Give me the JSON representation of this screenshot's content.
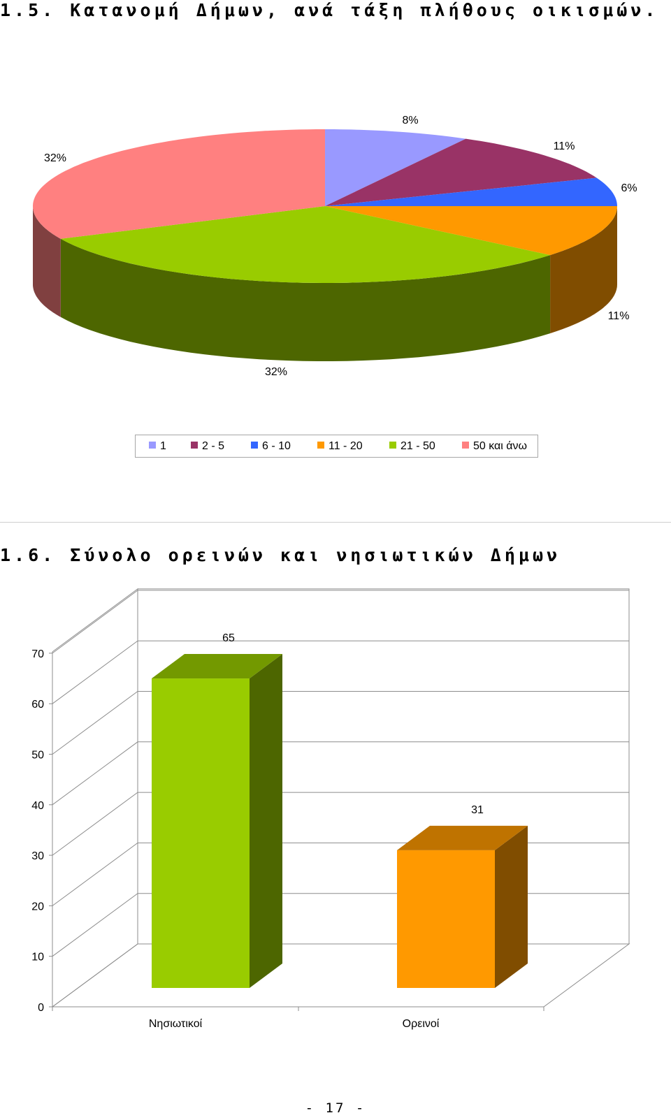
{
  "section1": {
    "title": "1.5.  Κατανομή Δήμων, ανά τάξη πλήθους οικισμών."
  },
  "section2": {
    "title": "1.6.  Σύνολο ορεινών και νησιωτικών Δήμων"
  },
  "footer": {
    "page": "- 17 -"
  },
  "chart_data": [
    {
      "type": "pie",
      "style": "3d",
      "title": "",
      "categories": [
        "1",
        "2 - 5",
        "6 - 10",
        "11 - 20",
        "21 - 50",
        "50 και άνω"
      ],
      "values": [
        8,
        11,
        6,
        11,
        32,
        32
      ],
      "labels": [
        "8%",
        "11%",
        "6%",
        "11%",
        "32%",
        "32%"
      ],
      "colors": [
        "#9999ff",
        "#993366",
        "#3366ff",
        "#ff9900",
        "#99cc00",
        "#ff8080"
      ],
      "side_colors": [
        "#6b6bb3",
        "#6b2447",
        "#2447b3",
        "#804d00",
        "#4d6600",
        "#804040"
      ],
      "legend_position": "bottom"
    },
    {
      "type": "bar",
      "style": "3d",
      "title": "",
      "categories": [
        "Νησιωτικοί",
        "Ορεινοί"
      ],
      "values": [
        65,
        31
      ],
      "ylim": [
        0,
        70
      ],
      "yticks": [
        "0",
        "10",
        "20",
        "30",
        "40",
        "50",
        "60",
        "70"
      ],
      "grid": true,
      "colors": [
        "#99cc00",
        "#ff9900"
      ],
      "top_colors": [
        "#739900",
        "#bf7300"
      ],
      "side_colors": [
        "#4d6600",
        "#804d00"
      ],
      "xlabel": "",
      "ylabel": ""
    }
  ]
}
